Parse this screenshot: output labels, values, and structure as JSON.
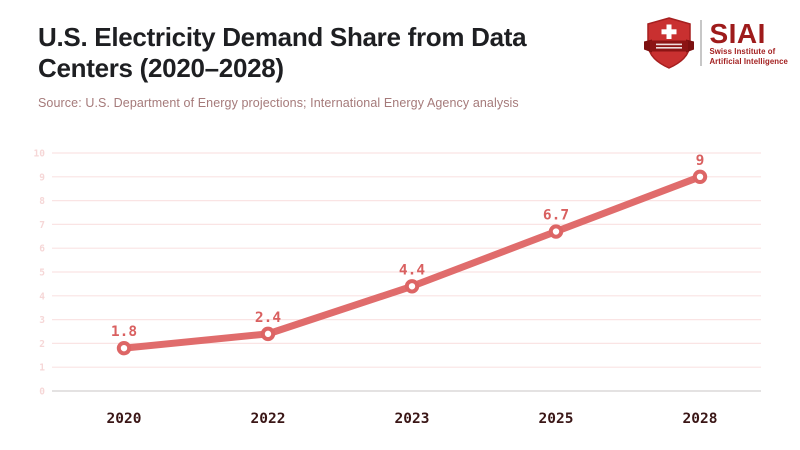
{
  "header": {
    "title_line1": "U.S. Electricity Demand Share from Data",
    "title_line2": "Centers (2020–2028)",
    "source": "Source: U.S. Department of Energy projections; International Energy Agency analysis"
  },
  "logo": {
    "acronym": "SIAI",
    "name_line1": "Swiss Institute of",
    "name_line2": "Artificial Intelligence",
    "shield_icon": "swiss-shield-icon",
    "colors": {
      "brand_red": "#9e1b1b",
      "shield_fill": "#c93030",
      "shield_edge": "#a61f1f",
      "banner": "#8c1414"
    }
  },
  "chart_data": {
    "type": "line",
    "title": "U.S. Electricity Demand Share from Data Centers (2020–2028)",
    "categories": [
      "2020",
      "2022",
      "2023",
      "2025",
      "2028"
    ],
    "values": [
      1.8,
      2.4,
      4.4,
      6.7,
      9
    ],
    "data_labels": [
      "1.8",
      "2.4",
      "4.4",
      "6.7",
      "9"
    ],
    "xlabel": "",
    "ylabel": "",
    "ylim": [
      0,
      10
    ],
    "y_ticks": [
      0,
      1,
      2,
      3,
      4,
      5,
      6,
      7,
      8,
      9,
      10
    ],
    "grid": true,
    "legend": "none",
    "colors": {
      "line": "#e06c6c",
      "marker_fill": "#ffffff",
      "marker_stroke": "#dd6565",
      "grid": "#fae4e4",
      "axis_line": "#d4d0d0",
      "y_tick_label": "#f6d7d7",
      "x_tick_label": "#3a1616",
      "data_label": "#d96060"
    }
  }
}
